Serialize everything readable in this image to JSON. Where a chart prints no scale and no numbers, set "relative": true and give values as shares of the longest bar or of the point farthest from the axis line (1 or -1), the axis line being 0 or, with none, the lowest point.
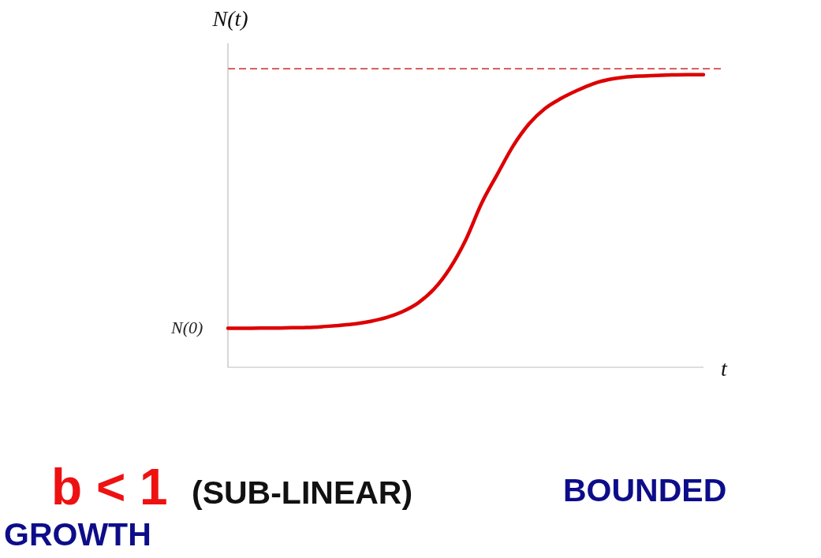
{
  "chart_data": {
    "type": "line",
    "xlabel": "t",
    "ylabel": "N(t)",
    "relative": true,
    "categories": [
      null,
      null,
      null,
      null,
      null,
      null,
      null,
      null,
      null,
      null,
      null,
      null,
      null,
      null,
      null,
      null,
      null,
      null,
      null,
      null,
      null,
      null,
      null,
      null,
      null,
      null,
      null,
      null,
      null,
      null,
      null
    ],
    "series": [
      {
        "color": "#dd0000",
        "values": [
          0.133,
          0.133,
          0.134,
          0.134,
          0.135,
          0.136,
          0.139,
          0.143,
          0.148,
          0.157,
          0.17,
          0.19,
          0.22,
          0.267,
          0.338,
          0.435,
          0.56,
          0.66,
          0.757,
          0.832,
          0.884,
          0.918,
          0.945,
          0.968,
          0.983,
          0.991,
          0.995,
          0.997,
          0.999,
          1.0,
          1.0
        ]
      }
    ],
    "ref_lines": [
      {
        "axis": "y",
        "value": 1.02,
        "color": "#cc2a2a",
        "line_style": "dashed"
      }
    ],
    "annotations": [
      "N(0)",
      "b < 1",
      "(SUB-LINEAR)",
      "BOUNDED",
      "GROWTH"
    ]
  }
}
